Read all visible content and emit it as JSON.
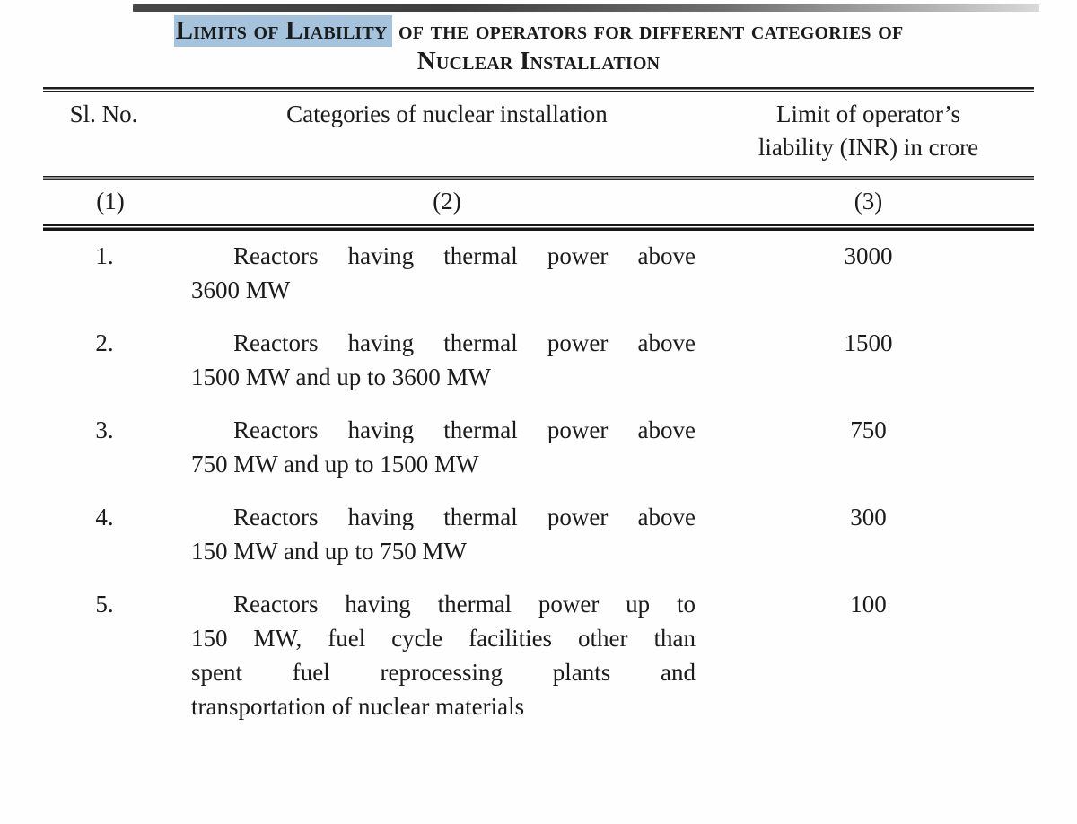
{
  "title": {
    "highlighted_text": "Limits of Liability",
    "highlight_color": "#a6c3de",
    "line1_rest": " of the operators for different categories of",
    "line2": "Nuclear Installation"
  },
  "table": {
    "headers": {
      "col1": "Sl. No.",
      "col2": "Categories of nuclear installation",
      "col3_line1": "Limit of operator’s",
      "col3_line2": "liability (INR) in crore"
    },
    "index_row": {
      "col1": "(1)",
      "col2": "(2)",
      "col3": "(3)"
    },
    "rows": [
      {
        "sl": "1.",
        "category_lines": [
          "Reactors having thermal power above",
          "3600 MW"
        ],
        "limit": "3000"
      },
      {
        "sl": "2.",
        "category_lines": [
          "Reactors having thermal power above",
          "1500 MW and up to 3600 MW"
        ],
        "limit": "1500"
      },
      {
        "sl": "3.",
        "category_lines": [
          "Reactors having thermal power above",
          "750 MW and up to 1500 MW"
        ],
        "limit": "750"
      },
      {
        "sl": "4.",
        "category_lines": [
          "Reactors having thermal power above",
          "150 MW and up to 750 MW"
        ],
        "limit": "300"
      },
      {
        "sl": "5.",
        "category_lines": [
          "Reactors having thermal power up to",
          "150 MW, fuel cycle facilities other than",
          "spent fuel reprocessing plants and",
          "transportation of nuclear materials"
        ],
        "limit": "100"
      }
    ]
  }
}
